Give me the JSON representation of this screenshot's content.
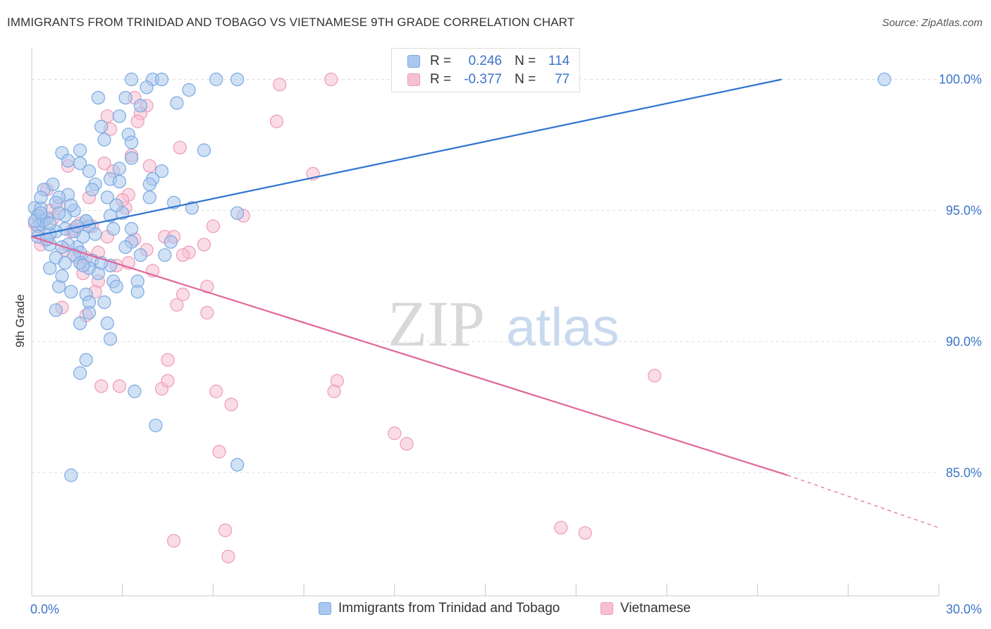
{
  "title": "IMMIGRANTS FROM TRINIDAD AND TOBAGO VS VIETNAMESE 9TH GRADE CORRELATION CHART",
  "source": "Source: ZipAtlas.com",
  "watermark": {
    "zip": "ZIP",
    "atlas": "atlas"
  },
  "legend": {
    "rows": [
      {
        "r_label": "R =",
        "r_value": "0.246",
        "n_label": "N =",
        "n_value": "114"
      },
      {
        "r_label": "R =",
        "r_value": "-0.377",
        "n_label": "N =",
        "n_value": "77"
      }
    ]
  },
  "bottom_legend": {
    "items": [
      {
        "label": "Immigrants from Trinidad and Tobago"
      },
      {
        "label": "Vietnamese"
      }
    ]
  },
  "colors": {
    "blue_fill": "#aac8ef",
    "blue_stroke": "#7aa8e0",
    "blue_line": "#2f74d0",
    "pink_fill": "#f6c0d2",
    "pink_stroke": "#ee9ab8",
    "pink_line": "#e0669a",
    "axis_label": "#3b73c8",
    "grid": "#e0e0e0"
  },
  "chart_data": {
    "type": "scatter",
    "title": "IMMIGRANTS FROM TRINIDAD AND TOBAGO VS VIETNAMESE 9TH GRADE CORRELATION CHART",
    "xlabel": "",
    "ylabel": "9th Grade",
    "xlim": [
      0,
      30
    ],
    "ylim": [
      80.3,
      101.2
    ],
    "x_tick_labels": [
      "0.0%",
      "30.0%"
    ],
    "y_ticks": [
      85,
      90,
      95,
      100
    ],
    "y_tick_labels": [
      "85.0%",
      "90.0%",
      "95.0%",
      "100.0%"
    ],
    "grid": true,
    "legend_position": "top-center",
    "series": [
      {
        "name": "Immigrants from Trinidad and Tobago",
        "color": "#aac8ef",
        "trend": {
          "x": [
            0,
            24.8
          ],
          "y": [
            94.0,
            100.0
          ]
        },
        "points": [
          [
            3.3,
            100.0
          ],
          [
            4.0,
            100.0
          ],
          [
            4.3,
            100.0
          ],
          [
            6.1,
            100.0
          ],
          [
            6.8,
            100.0
          ],
          [
            28.2,
            100.0
          ],
          [
            3.8,
            99.7
          ],
          [
            5.2,
            99.6
          ],
          [
            2.2,
            99.3
          ],
          [
            3.1,
            99.3
          ],
          [
            4.8,
            99.1
          ],
          [
            3.6,
            99.0
          ],
          [
            2.9,
            98.6
          ],
          [
            2.3,
            98.2
          ],
          [
            3.2,
            97.9
          ],
          [
            2.4,
            97.7
          ],
          [
            3.3,
            97.6
          ],
          [
            1.6,
            97.3
          ],
          [
            5.7,
            97.3
          ],
          [
            1.0,
            97.2
          ],
          [
            1.2,
            96.9
          ],
          [
            1.6,
            96.8
          ],
          [
            3.3,
            97.0
          ],
          [
            2.9,
            96.6
          ],
          [
            4.3,
            96.5
          ],
          [
            1.9,
            96.5
          ],
          [
            2.6,
            96.2
          ],
          [
            4.0,
            96.2
          ],
          [
            2.1,
            96.0
          ],
          [
            3.9,
            96.0
          ],
          [
            0.7,
            96.0
          ],
          [
            0.4,
            95.8
          ],
          [
            1.2,
            95.6
          ],
          [
            0.9,
            95.5
          ],
          [
            2.5,
            95.5
          ],
          [
            3.9,
            95.5
          ],
          [
            4.7,
            95.3
          ],
          [
            0.1,
            95.1
          ],
          [
            0.3,
            95.1
          ],
          [
            5.3,
            95.1
          ],
          [
            1.4,
            95.0
          ],
          [
            6.8,
            94.9
          ],
          [
            0.2,
            94.8
          ],
          [
            1.1,
            94.8
          ],
          [
            2.6,
            94.8
          ],
          [
            0.5,
            94.7
          ],
          [
            1.8,
            94.6
          ],
          [
            0.3,
            94.5
          ],
          [
            0.2,
            94.4
          ],
          [
            1.9,
            94.4
          ],
          [
            3.3,
            94.3
          ],
          [
            1.1,
            94.3
          ],
          [
            2.7,
            94.3
          ],
          [
            0.8,
            94.2
          ],
          [
            0.6,
            94.1
          ],
          [
            0.2,
            94.0
          ],
          [
            1.7,
            94.0
          ],
          [
            3.3,
            93.8
          ],
          [
            4.6,
            93.8
          ],
          [
            0.6,
            93.7
          ],
          [
            1.5,
            93.6
          ],
          [
            3.1,
            93.6
          ],
          [
            1.6,
            93.4
          ],
          [
            1.4,
            93.3
          ],
          [
            3.6,
            93.3
          ],
          [
            4.4,
            93.3
          ],
          [
            0.8,
            93.2
          ],
          [
            2.0,
            93.1
          ],
          [
            1.1,
            93.0
          ],
          [
            2.6,
            92.9
          ],
          [
            0.6,
            92.8
          ],
          [
            1.9,
            92.8
          ],
          [
            2.2,
            92.6
          ],
          [
            2.7,
            92.3
          ],
          [
            3.5,
            92.3
          ],
          [
            0.9,
            92.1
          ],
          [
            2.8,
            92.1
          ],
          [
            1.3,
            91.9
          ],
          [
            3.5,
            91.9
          ],
          [
            1.8,
            91.8
          ],
          [
            2.4,
            91.5
          ],
          [
            1.9,
            91.5
          ],
          [
            0.8,
            91.2
          ],
          [
            1.9,
            91.1
          ],
          [
            2.5,
            90.7
          ],
          [
            1.6,
            90.7
          ],
          [
            2.6,
            90.1
          ],
          [
            1.8,
            89.3
          ],
          [
            1.6,
            88.8
          ],
          [
            3.4,
            88.1
          ],
          [
            4.1,
            86.8
          ],
          [
            6.8,
            85.3
          ],
          [
            1.3,
            84.9
          ],
          [
            1.8,
            94.6
          ],
          [
            0.3,
            95.5
          ],
          [
            1.4,
            94.2
          ],
          [
            2.3,
            93.0
          ],
          [
            1.0,
            92.5
          ],
          [
            0.5,
            93.9
          ],
          [
            1.2,
            93.7
          ],
          [
            3.0,
            94.9
          ],
          [
            2.0,
            95.8
          ],
          [
            0.8,
            95.3
          ],
          [
            1.6,
            93.0
          ],
          [
            2.9,
            96.1
          ],
          [
            0.4,
            94.6
          ],
          [
            0.9,
            94.9
          ],
          [
            1.3,
            95.2
          ],
          [
            2.1,
            94.1
          ],
          [
            0.1,
            94.6
          ],
          [
            0.6,
            94.5
          ],
          [
            1.7,
            92.9
          ],
          [
            2.8,
            95.2
          ],
          [
            0.3,
            94.9
          ],
          [
            1.0,
            93.6
          ],
          [
            1.5,
            94.4
          ]
        ]
      },
      {
        "name": "Vietnamese",
        "color": "#f6c0d2",
        "trend": {
          "x": [
            0,
            25.0
          ],
          "y": [
            94.0,
            84.9
          ]
        },
        "trend_dashed": {
          "x": [
            25.0,
            30.0
          ],
          "y": [
            84.9,
            82.9
          ]
        },
        "points": [
          [
            9.9,
            100.0
          ],
          [
            8.2,
            99.8
          ],
          [
            3.4,
            99.3
          ],
          [
            3.8,
            99.0
          ],
          [
            3.6,
            98.7
          ],
          [
            2.5,
            98.6
          ],
          [
            8.1,
            98.4
          ],
          [
            3.5,
            98.4
          ],
          [
            2.6,
            98.1
          ],
          [
            4.9,
            97.4
          ],
          [
            3.3,
            97.1
          ],
          [
            2.4,
            96.8
          ],
          [
            1.2,
            96.7
          ],
          [
            3.9,
            96.7
          ],
          [
            9.3,
            96.4
          ],
          [
            2.7,
            96.5
          ],
          [
            0.5,
            95.8
          ],
          [
            3.2,
            95.6
          ],
          [
            1.9,
            95.5
          ],
          [
            3.1,
            95.1
          ],
          [
            0.6,
            95.0
          ],
          [
            7.0,
            94.8
          ],
          [
            0.3,
            94.6
          ],
          [
            1.6,
            94.5
          ],
          [
            6.0,
            94.4
          ],
          [
            1.4,
            94.3
          ],
          [
            4.4,
            94.0
          ],
          [
            4.7,
            94.0
          ],
          [
            0.4,
            93.9
          ],
          [
            5.7,
            93.7
          ],
          [
            0.3,
            93.7
          ],
          [
            3.8,
            93.5
          ],
          [
            1.1,
            93.5
          ],
          [
            2.2,
            93.4
          ],
          [
            5.2,
            93.4
          ],
          [
            5.0,
            93.3
          ],
          [
            1.8,
            93.2
          ],
          [
            3.2,
            93.0
          ],
          [
            4.0,
            92.7
          ],
          [
            2.2,
            92.3
          ],
          [
            5.8,
            92.1
          ],
          [
            2.1,
            91.9
          ],
          [
            5.0,
            91.8
          ],
          [
            4.8,
            91.4
          ],
          [
            1.0,
            91.3
          ],
          [
            5.8,
            91.1
          ],
          [
            1.8,
            91.0
          ],
          [
            4.5,
            89.3
          ],
          [
            10.1,
            88.5
          ],
          [
            20.6,
            88.7
          ],
          [
            2.3,
            88.3
          ],
          [
            2.9,
            88.3
          ],
          [
            4.3,
            88.2
          ],
          [
            4.5,
            88.5
          ],
          [
            6.1,
            88.1
          ],
          [
            10.0,
            88.1
          ],
          [
            6.6,
            87.6
          ],
          [
            12.0,
            86.5
          ],
          [
            12.4,
            86.1
          ],
          [
            6.2,
            85.8
          ],
          [
            17.5,
            82.9
          ],
          [
            18.3,
            82.7
          ],
          [
            6.4,
            82.8
          ],
          [
            4.7,
            82.4
          ],
          [
            6.5,
            81.8
          ],
          [
            0.9,
            95.2
          ],
          [
            2.0,
            94.4
          ],
          [
            1.5,
            93.2
          ],
          [
            0.2,
            94.2
          ],
          [
            1.7,
            92.6
          ],
          [
            2.8,
            92.9
          ],
          [
            3.4,
            93.9
          ],
          [
            0.7,
            94.7
          ],
          [
            1.3,
            94.2
          ],
          [
            2.5,
            94.0
          ],
          [
            0.1,
            94.5
          ],
          [
            3.0,
            95.4
          ]
        ]
      }
    ]
  }
}
